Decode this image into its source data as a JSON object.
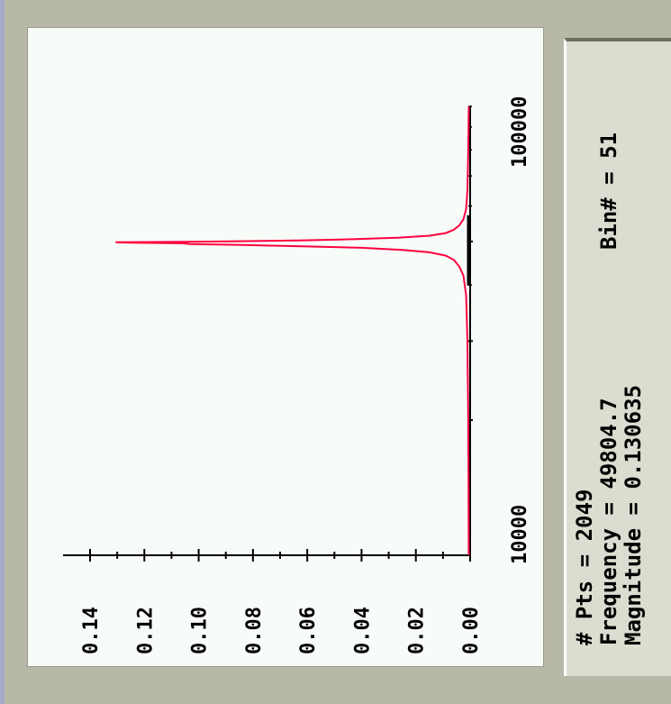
{
  "chart_data": {
    "type": "line",
    "title": "",
    "xlabel": "",
    "ylabel": "",
    "xscale": "log",
    "xlim": [
      10000,
      100000
    ],
    "ylim": [
      0,
      0.14
    ],
    "x_tick_labels": [
      "10000",
      "100000"
    ],
    "y_tick_values": [
      0.0,
      0.02,
      0.04,
      0.06,
      0.08,
      0.1,
      0.12,
      0.14
    ],
    "y_tick_labels": [
      "0.00",
      "0.02",
      "0.04",
      "0.06",
      "0.08",
      "0.10",
      "0.12",
      "0.14"
    ],
    "series": [
      {
        "color": "#ff0040",
        "x": [
          10000,
          20000,
          30000,
          38000,
          42000,
          44000,
          45500,
          46500,
          47300,
          47900,
          48400,
          48800,
          49100,
          49350,
          49550,
          49700,
          49804.7,
          49900,
          50100,
          50300,
          50600,
          51000,
          51500,
          52200,
          53100,
          54300,
          56000,
          59000,
          65000,
          80000,
          100000
        ],
        "y": [
          0.0005,
          0.0007,
          0.001,
          0.0015,
          0.0025,
          0.004,
          0.006,
          0.009,
          0.015,
          0.025,
          0.04,
          0.062,
          0.084,
          0.103,
          0.106,
          0.125,
          0.1306,
          0.105,
          0.082,
          0.061,
          0.042,
          0.026,
          0.015,
          0.009,
          0.006,
          0.004,
          0.0025,
          0.0015,
          0.001,
          0.0007,
          0.0005
        ]
      }
    ],
    "cursor": {
      "x": 49804.7
    }
  },
  "info": {
    "pts": "# Pts = 2049",
    "frequency": "Frequency = 49804.7",
    "magnitude": "Magnitude = 0.130635",
    "bin": "Bin# = 51"
  }
}
